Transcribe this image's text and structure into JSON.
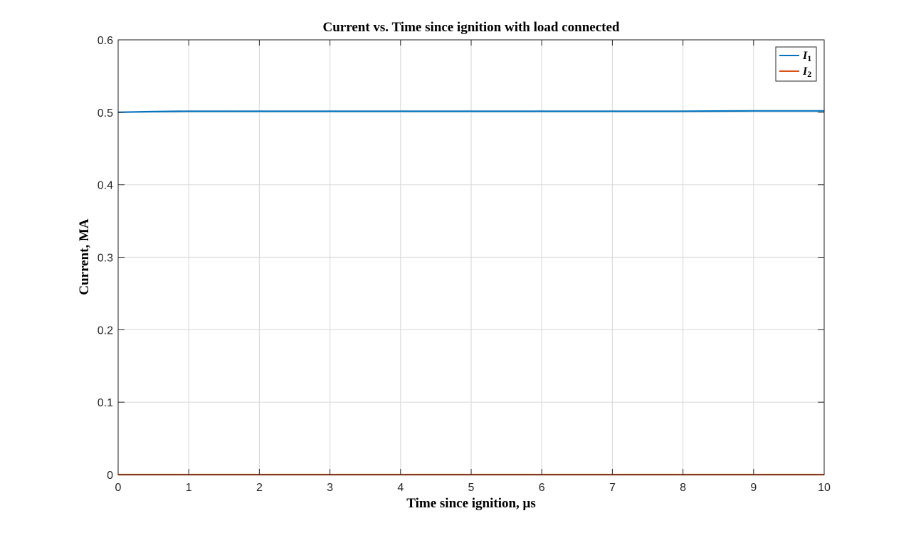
{
  "chart_data": {
    "type": "line",
    "title": "Current vs.  Time since ignition with load connected",
    "xlabel": "Time since ignition, μs",
    "ylabel": "Current, MA",
    "xlim": [
      0,
      10
    ],
    "ylim": [
      0,
      0.6
    ],
    "xticks": [
      "0",
      "1",
      "2",
      "3",
      "4",
      "5",
      "6",
      "7",
      "8",
      "9",
      "10"
    ],
    "yticks": [
      "0",
      "0.1",
      "0.2",
      "0.3",
      "0.4",
      "0.5",
      "0.6"
    ],
    "grid": true,
    "legend_position": "top-right",
    "x": [
      0,
      0.5,
      1,
      1.5,
      2,
      3,
      4,
      5,
      6,
      7,
      8,
      9,
      10
    ],
    "series": [
      {
        "name": "I",
        "subscript": "1",
        "color": "#0072BD",
        "values": [
          0.5,
          0.501,
          0.5015,
          0.5015,
          0.5015,
          0.5015,
          0.5015,
          0.5015,
          0.5015,
          0.5015,
          0.5015,
          0.502,
          0.502
        ]
      },
      {
        "name": "I",
        "subscript": "2",
        "color": "#D95319",
        "values": [
          0,
          0,
          0,
          0,
          0,
          0,
          0,
          0,
          0,
          0,
          0,
          0,
          0
        ]
      }
    ]
  }
}
